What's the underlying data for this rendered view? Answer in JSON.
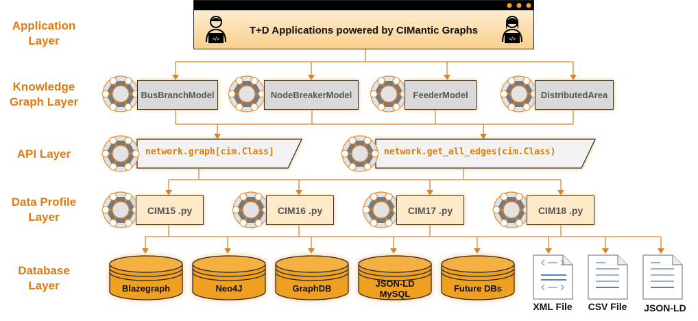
{
  "layers": {
    "application": [
      "Application",
      "Layer"
    ],
    "knowledge": [
      "Knowledge",
      "Graph Layer"
    ],
    "api": [
      "API Layer"
    ],
    "profile": [
      "Data Profile",
      "Layer"
    ],
    "database": [
      "Database",
      "Layer"
    ]
  },
  "app": {
    "title": "T+D Applications powered by CIMantic Graphs",
    "icons": [
      "developer-icon",
      "developer-icon"
    ]
  },
  "knowledge_graph": [
    "BusBranchModel",
    "NodeBreakerModel",
    "FeederModel",
    "DistributedArea"
  ],
  "api": [
    "network.graph[cim.Class]",
    "network.get_all_edges(cim.Class)"
  ],
  "profiles": [
    "CIM15 .py",
    "CIM16 .py",
    "CIM17 .py",
    "CIM18 .py"
  ],
  "databases": [
    [
      "Blazegraph"
    ],
    [
      "Neo4J"
    ],
    [
      "GraphDB"
    ],
    [
      "JSON-LD",
      "MySQL"
    ],
    [
      "Future DBs"
    ]
  ],
  "files": [
    "XML File",
    "CSV File",
    "JSON-LD"
  ],
  "colors": {
    "accent": "#e07b10",
    "line": "#d9822b",
    "node_gray": "#7a7a7a",
    "db_fill": "#f0a020"
  }
}
